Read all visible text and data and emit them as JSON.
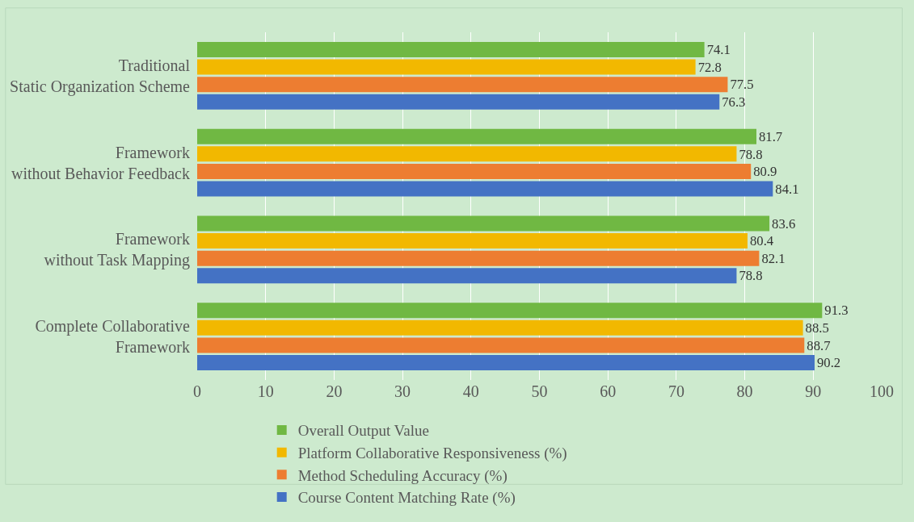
{
  "chart_data": {
    "type": "bar",
    "orientation": "horizontal",
    "categories": [
      "Traditional\nStatic Organization Scheme",
      "Framework\nwithout Behavior Feedback",
      "Framework\nwithout Task Mapping",
      "Complete Collaborative\nFramework"
    ],
    "series": [
      {
        "name": "Overall Output Value",
        "color": "#70b843",
        "values": [
          74.1,
          81.7,
          83.6,
          91.3
        ]
      },
      {
        "name": "Platform Collaborative Responsiveness (%)",
        "color": "#f2b800",
        "values": [
          72.8,
          78.8,
          80.4,
          88.5
        ]
      },
      {
        "name": "Method Scheduling Accuracy (%)",
        "color": "#ed7d31",
        "values": [
          77.5,
          80.9,
          82.1,
          88.7
        ]
      },
      {
        "name": "Course Content Matching Rate (%)",
        "color": "#4472c4",
        "values": [
          76.3,
          84.1,
          78.8,
          90.2
        ]
      }
    ],
    "xlim": [
      0,
      100
    ],
    "xticks": [
      0,
      10,
      20,
      30,
      40,
      50,
      60,
      70,
      80,
      90,
      100
    ],
    "grid": "x",
    "legend": "bottom",
    "data_labels": true
  }
}
